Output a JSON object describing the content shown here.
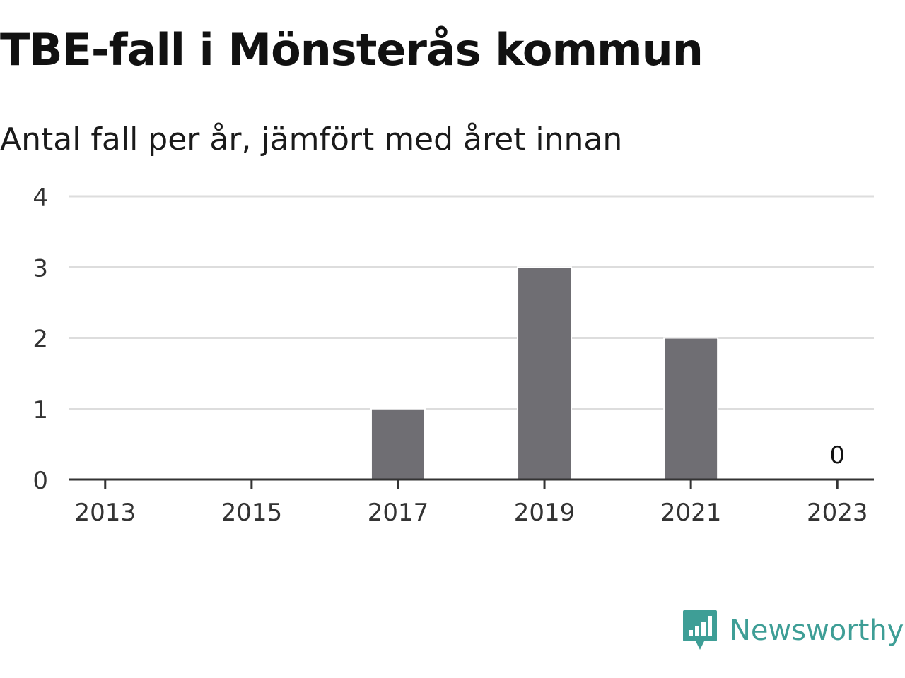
{
  "title": "TBE-fall i Mönsterås kommun",
  "subtitle": "Antal fall per år, jämfört med året innan",
  "brand": {
    "name": "Newsworthy",
    "icon": "newsworthy-logo-icon",
    "color": "#3e9e96"
  },
  "chart_data": {
    "type": "bar",
    "x_ticks": [
      "2013",
      "2015",
      "2017",
      "2019",
      "2021",
      "2023"
    ],
    "y_ticks": [
      0,
      1,
      2,
      3,
      4
    ],
    "ylim": [
      0,
      4
    ],
    "xlim": [
      2012.5,
      2023.5
    ],
    "grid": true,
    "bar_color": "#6f6e73",
    "points": [
      {
        "x": 2017,
        "value": 1
      },
      {
        "x": 2019,
        "value": 3
      },
      {
        "x": 2021,
        "value": 2
      }
    ],
    "annotations": [
      {
        "x": 2023,
        "text": "0"
      }
    ]
  }
}
